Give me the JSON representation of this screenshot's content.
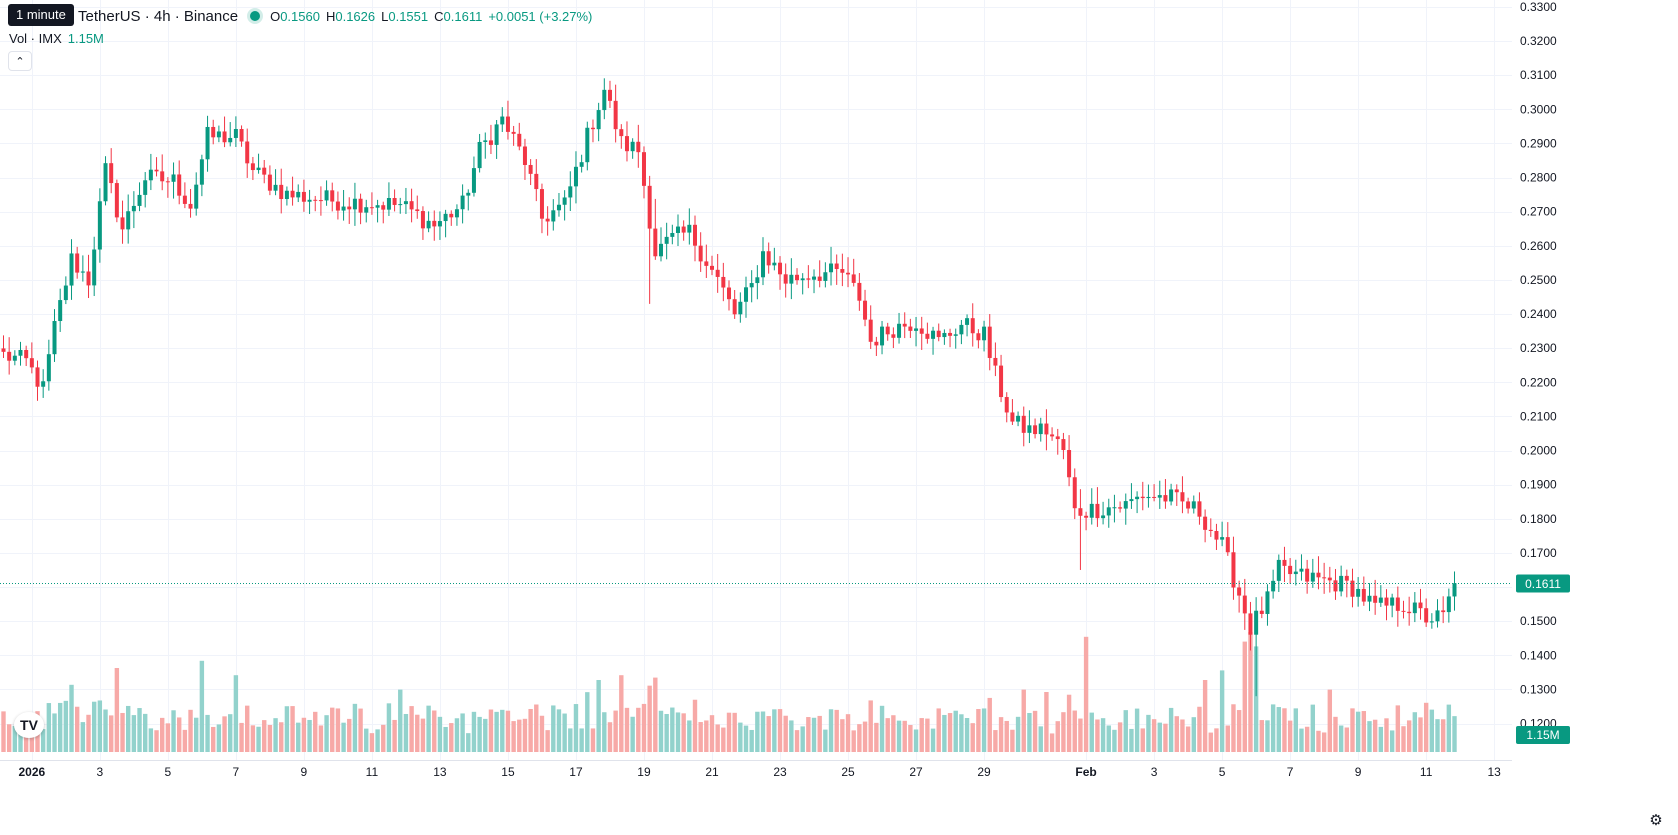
{
  "header": {
    "tooltip": "1 minute",
    "symbol": "TetherUS · 4h · Binance",
    "o_label": "O",
    "o": "0.1560",
    "h_label": "H",
    "h": "0.1626",
    "l_label": "L",
    "l": "0.1551",
    "c_label": "C",
    "c": "0.1611",
    "change": "+0.0051 (+3.27%)"
  },
  "volume_legend": {
    "label": "Vol · IMX",
    "value": "1.15M"
  },
  "price_badge": "0.1611",
  "volume_badge": "1.15M",
  "logo_text": "TV",
  "settings_icon": "gear-icon",
  "colors": {
    "up": "#089981",
    "down": "#f23645",
    "up_vol": "#92d2cc",
    "down_vol": "#f7a9a7",
    "grid": "#f0f3fa"
  },
  "chart_data": {
    "type": "candlestick",
    "interval": "4h",
    "y_ticks": [
      "0.1200",
      "0.1300",
      "0.1400",
      "0.1500",
      "0.1600",
      "0.1700",
      "0.1800",
      "0.1900",
      "0.2000",
      "0.2100",
      "0.2200",
      "0.2300",
      "0.2400",
      "0.2500",
      "0.2600",
      "0.2700",
      "0.2800",
      "0.2900",
      "0.3000",
      "0.3100",
      "0.3200",
      "0.3300"
    ],
    "ylim": [
      0.1165,
      0.3335
    ],
    "x_ticks": [
      {
        "label": "2026",
        "i": 5,
        "bold": true
      },
      {
        "label": "3",
        "i": 17
      },
      {
        "label": "5",
        "i": 29
      },
      {
        "label": "7",
        "i": 41
      },
      {
        "label": "9",
        "i": 53
      },
      {
        "label": "11",
        "i": 65
      },
      {
        "label": "13",
        "i": 77
      },
      {
        "label": "15",
        "i": 89
      },
      {
        "label": "17",
        "i": 101
      },
      {
        "label": "19",
        "i": 113
      },
      {
        "label": "21",
        "i": 125
      },
      {
        "label": "23",
        "i": 137
      },
      {
        "label": "25",
        "i": 149
      },
      {
        "label": "27",
        "i": 161
      },
      {
        "label": "29",
        "i": 173
      },
      {
        "label": "Feb",
        "i": 191,
        "bold": true
      },
      {
        "label": "3",
        "i": 203
      },
      {
        "label": "5",
        "i": 215
      },
      {
        "label": "7",
        "i": 227
      },
      {
        "label": "9",
        "i": 239
      },
      {
        "label": "11",
        "i": 251
      },
      {
        "label": "13",
        "i": 263
      }
    ],
    "last_price": 0.1611,
    "waypoints": [
      [
        0,
        0.228
      ],
      [
        4,
        0.226
      ],
      [
        7,
        0.218
      ],
      [
        9,
        0.236
      ],
      [
        12,
        0.256
      ],
      [
        15,
        0.25
      ],
      [
        18,
        0.282
      ],
      [
        21,
        0.265
      ],
      [
        25,
        0.28
      ],
      [
        30,
        0.279
      ],
      [
        33,
        0.272
      ],
      [
        36,
        0.292
      ],
      [
        41,
        0.292
      ],
      [
        44,
        0.282
      ],
      [
        50,
        0.275
      ],
      [
        60,
        0.273
      ],
      [
        70,
        0.272
      ],
      [
        76,
        0.266
      ],
      [
        81,
        0.272
      ],
      [
        84,
        0.288
      ],
      [
        88,
        0.297
      ],
      [
        92,
        0.285
      ],
      [
        95,
        0.268
      ],
      [
        99,
        0.272
      ],
      [
        103,
        0.292
      ],
      [
        106,
        0.306
      ],
      [
        109,
        0.29
      ],
      [
        112,
        0.288
      ],
      [
        115,
        0.258
      ],
      [
        118,
        0.262
      ],
      [
        121,
        0.264
      ],
      [
        126,
        0.25
      ],
      [
        129,
        0.24
      ],
      [
        132,
        0.248
      ],
      [
        134,
        0.258
      ],
      [
        138,
        0.25
      ],
      [
        143,
        0.252
      ],
      [
        148,
        0.252
      ],
      [
        151,
        0.245
      ],
      [
        153,
        0.232
      ],
      [
        157,
        0.236
      ],
      [
        161,
        0.238
      ],
      [
        165,
        0.232
      ],
      [
        169,
        0.237
      ],
      [
        173,
        0.234
      ],
      [
        175,
        0.222
      ],
      [
        178,
        0.208
      ],
      [
        181,
        0.206
      ],
      [
        184,
        0.206
      ],
      [
        187,
        0.2
      ],
      [
        189,
        0.182
      ],
      [
        193,
        0.183
      ],
      [
        198,
        0.184
      ],
      [
        201,
        0.187
      ],
      [
        206,
        0.186
      ],
      [
        211,
        0.182
      ],
      [
        215,
        0.172
      ],
      [
        218,
        0.158
      ],
      [
        220,
        0.148
      ],
      [
        223,
        0.156
      ],
      [
        225,
        0.165
      ],
      [
        229,
        0.163
      ],
      [
        233,
        0.162
      ],
      [
        238,
        0.16
      ],
      [
        242,
        0.154
      ],
      [
        247,
        0.155
      ],
      [
        251,
        0.151
      ],
      [
        254,
        0.151
      ],
      [
        256,
        0.1611
      ]
    ],
    "volume_scale_max": 2.5
  }
}
